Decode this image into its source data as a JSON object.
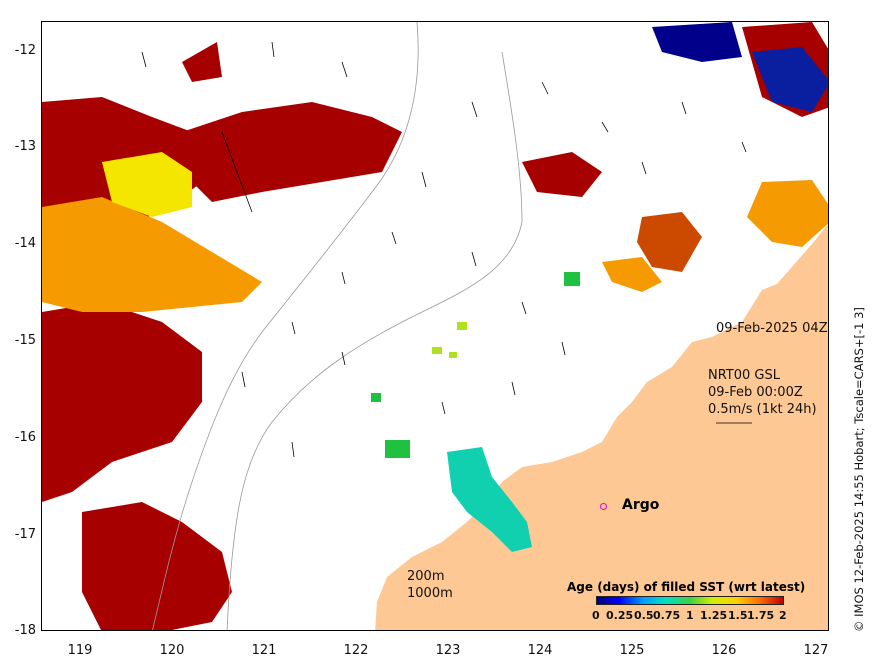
{
  "map": {
    "y_ticks": [
      "-12",
      "-13",
      "-14",
      "-15",
      "-16",
      "-17",
      "-18"
    ],
    "x_ticks": [
      "119",
      "120",
      "121",
      "122",
      "123",
      "124",
      "125",
      "126",
      "127"
    ],
    "date_label": "09-Feb-2025 04Z",
    "nrt_lines": [
      "NRT00 GSL",
      "09-Feb 00:00Z",
      "0.5m/s (1kt 24h)"
    ],
    "argo_label": "Argo",
    "depth_labels": [
      "200m",
      "1000m"
    ],
    "side_note": "© IMOS 12-Feb-2025 14:55 Hobart; Tscale=CARS+[-1 3]",
    "colorbar": {
      "title": "Age (days) of filled SST (wrt latest)",
      "ticks": [
        "0",
        "0.25",
        "0.5",
        "0.75",
        "1",
        "1.25",
        "1.5",
        "1.75",
        "2"
      ]
    },
    "colors": {
      "land": "#fec894",
      "old": "#a60000",
      "orange": "#f59a00",
      "yellow": "#f5e600",
      "teal": "#10d0b0",
      "green": "#20c040",
      "navy": "#00008b"
    }
  }
}
